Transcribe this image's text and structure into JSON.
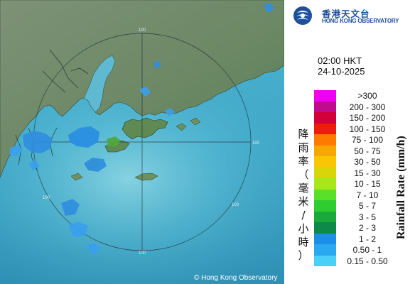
{
  "organization": {
    "name_cn": "香港天文台",
    "name_en": "HONG KONG OBSERVATORY"
  },
  "observation": {
    "time": "02:00 HKT",
    "date": "24-10-2025"
  },
  "legend": {
    "title_en": "Rainfall Rate (mm/h)",
    "title_cn_chars": [
      "降",
      "雨",
      "率",
      "（",
      "毫",
      "米",
      "/",
      "小",
      "時",
      "）"
    ],
    "items": [
      {
        "label": ">300",
        "color": "#f000f0"
      },
      {
        "label": "200 - 300",
        "color": "#c00c8c"
      },
      {
        "label": "150 - 200",
        "color": "#d2003a"
      },
      {
        "label": "100 - 150",
        "color": "#ee1c0a"
      },
      {
        "label": "75 - 100",
        "color": "#ff7a00"
      },
      {
        "label": "50 - 75",
        "color": "#f7a704"
      },
      {
        "label": "30 - 50",
        "color": "#f8c605"
      },
      {
        "label": "15 - 30",
        "color": "#d8d60a"
      },
      {
        "label": "10 - 15",
        "color": "#a6e81a"
      },
      {
        "label": "7 - 10",
        "color": "#5be02a"
      },
      {
        "label": "5 - 7",
        "color": "#2fcd32"
      },
      {
        "label": "3 - 5",
        "color": "#1aaa3c"
      },
      {
        "label": "2 - 3",
        "color": "#0d8a4a"
      },
      {
        "label": "1 - 2",
        "color": "#1b8fe6"
      },
      {
        "label": "0.50 - 1",
        "color": "#2aa8f0"
      },
      {
        "label": "0.15 - 0.50",
        "color": "#4ad0f8"
      }
    ]
  },
  "map": {
    "range_rings": [
      "100",
      "100",
      "100",
      "100",
      "100"
    ],
    "credit": "© Hong Kong Observatory",
    "colors": {
      "sea": "#3fa7c8",
      "land": "#6f8a68",
      "rain_light": "#2f8fe0",
      "rain_moderate": "#4fa83a"
    }
  }
}
